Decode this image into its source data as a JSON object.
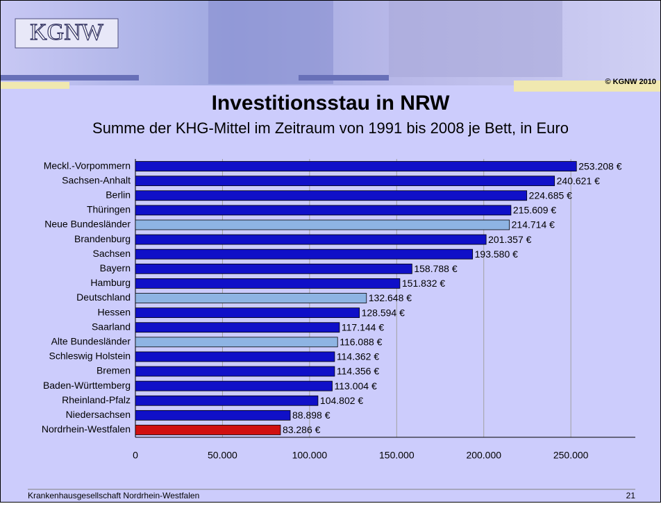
{
  "header": {
    "logo": "KGNW",
    "copyright": "© KGNW 2010"
  },
  "chart_data": {
    "type": "hbar",
    "title": "Investitionsstau in NRW",
    "subtitle": "Summe der KHG-Mittel im Zeitraum von 1991 bis 2008 je Bett, in Euro",
    "categories": [
      "Meckl.-Vorpommern",
      "Sachsen-Anhalt",
      "Berlin",
      "Thüringen",
      "Neue Bundesländer",
      "Brandenburg",
      "Sachsen",
      "Bayern",
      "Hamburg",
      "Deutschland",
      "Hessen",
      "Saarland",
      "Alte Bundesländer",
      "Schleswig Holstein",
      "Bremen",
      "Baden-Württemberg",
      "Rheinland-Pfalz",
      "Niedersachsen",
      "Nordrhein-Westfalen"
    ],
    "values": [
      253208,
      240621,
      224685,
      215609,
      214714,
      201357,
      193580,
      158788,
      151832,
      132648,
      128594,
      117144,
      116088,
      114362,
      114356,
      113004,
      104802,
      88898,
      83286
    ],
    "value_labels": [
      "253.208 €",
      "240.621 €",
      "224.685 €",
      "215.609 €",
      "214.714 €",
      "201.357 €",
      "193.580 €",
      "158.788 €",
      "151.832 €",
      "132.648 €",
      "128.594 €",
      "117.144 €",
      "116.088 €",
      "114.362 €",
      "114.356 €",
      "113.004 €",
      "104.802 €",
      "88.898 €",
      "83.286 €"
    ],
    "colors": [
      "#1010c8",
      "#1010c8",
      "#1010c8",
      "#1010c8",
      "#8eb4e3",
      "#1010c8",
      "#1010c8",
      "#1010c8",
      "#1010c8",
      "#8eb4e3",
      "#1010c8",
      "#1010c8",
      "#8eb4e3",
      "#1010c8",
      "#1010c8",
      "#1010c8",
      "#1010c8",
      "#1010c8",
      "#d01010"
    ],
    "xlim": [
      0,
      287000
    ],
    "xticks": [
      0,
      {
        "value": 50000,
        "label": "50.000"
      },
      {
        "value": 100000,
        "label": "100.000"
      },
      {
        "value": 150000,
        "label": "150.000"
      },
      {
        "value": 200000,
        "label": "200.000"
      },
      {
        "value": 250000,
        "label": "250.000"
      }
    ],
    "grid": true
  },
  "footer": {
    "organization": "Krankenhausgesellschaft Nordrhein-Westfalen",
    "page": "21"
  }
}
